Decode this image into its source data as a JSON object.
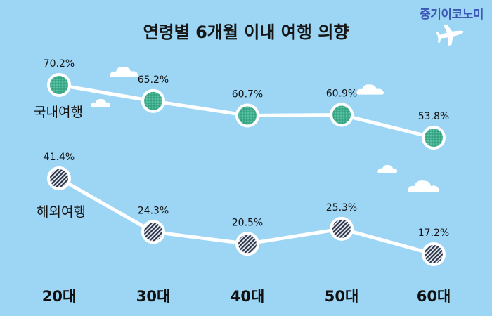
{
  "brand": "중기이코노미",
  "chart_data": {
    "type": "line",
    "title": "연령별 6개월 이내 여행 의향",
    "categories": [
      "20대",
      "30대",
      "40대",
      "50대",
      "60대"
    ],
    "series": [
      {
        "name": "국내여행",
        "values": [
          70.2,
          65.2,
          60.7,
          60.9,
          53.8
        ],
        "labels": [
          "70.2%",
          "65.2%",
          "60.7%",
          "60.9%",
          "53.8%"
        ],
        "color": "#3fae8d"
      },
      {
        "name": "해외여행",
        "values": [
          41.4,
          24.3,
          20.5,
          25.3,
          17.2
        ],
        "labels": [
          "41.4%",
          "24.3%",
          "20.5%",
          "25.3%",
          "17.2%"
        ],
        "color": "#2c3448"
      }
    ],
    "grid": false,
    "legend": "inline-left",
    "background": "#9dd6f5",
    "line_color": "#ffffff",
    "unit": "%"
  }
}
